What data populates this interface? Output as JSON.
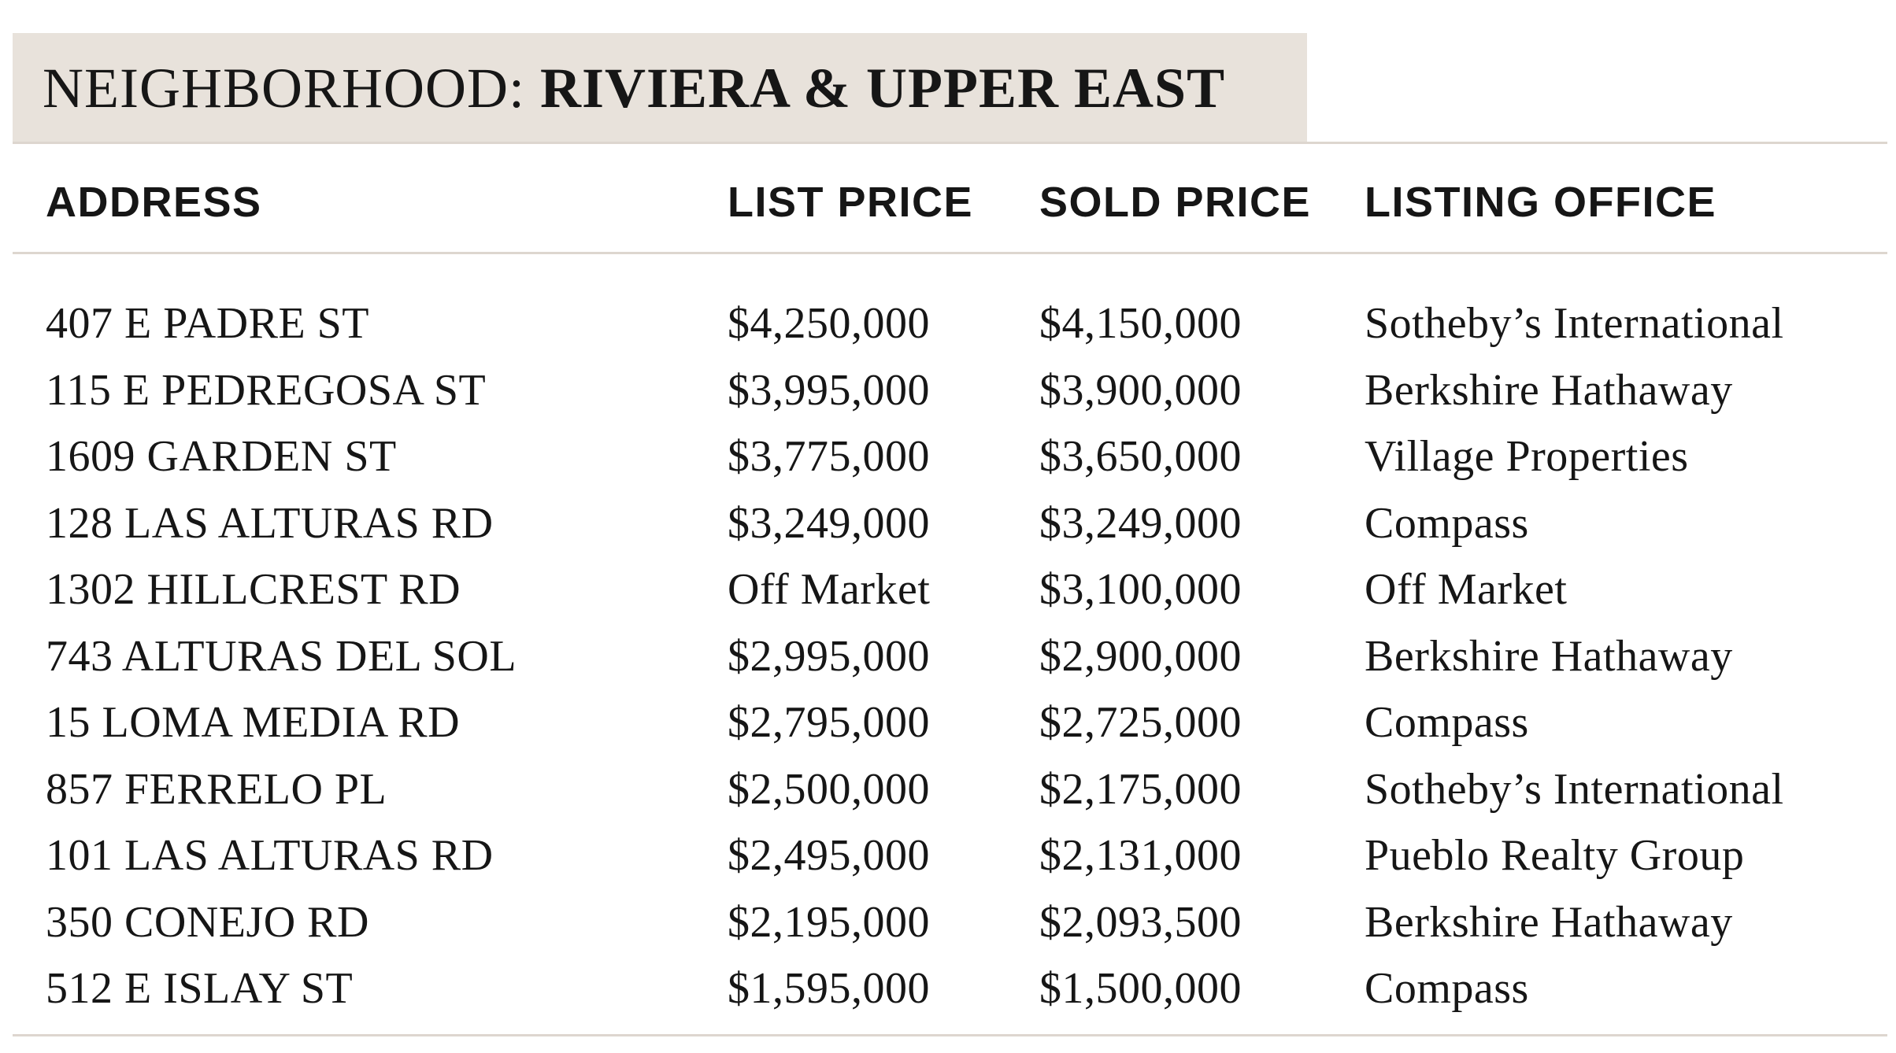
{
  "header": {
    "label": "NEIGHBORHOOD:",
    "title": "RIVIERA & UPPER EAST"
  },
  "table": {
    "headers": [
      "ADDRESS",
      "LIST PRICE",
      "SOLD PRICE",
      "LISTING OFFICE"
    ],
    "rows": [
      [
        "407 E PADRE ST",
        "$4,250,000",
        "$4,150,000",
        "Sotheby’s International"
      ],
      [
        "115 E PEDREGOSA ST",
        "$3,995,000",
        "$3,900,000",
        "Berkshire Hathaway"
      ],
      [
        "1609 GARDEN ST",
        "$3,775,000",
        "$3,650,000",
        "Village Properties"
      ],
      [
        "128 LAS ALTURAS RD",
        "$3,249,000",
        "$3,249,000",
        "Compass"
      ],
      [
        "1302 HILLCREST RD",
        "Off Market",
        "$3,100,000",
        "Off Market"
      ],
      [
        "743 ALTURAS DEL SOL",
        "$2,995,000",
        "$2,900,000",
        "Berkshire Hathaway"
      ],
      [
        "15 LOMA MEDIA RD",
        "$2,795,000",
        "$2,725,000",
        "Compass"
      ],
      [
        "857 FERRELO PL",
        "$2,500,000",
        "$2,175,000",
        "Sotheby’s International"
      ],
      [
        "101 LAS ALTURAS RD",
        "$2,495,000",
        "$2,131,000",
        "Pueblo Realty Group"
      ],
      [
        "350 CONEJO RD",
        "$2,195,000",
        "$2,093,500",
        "Berkshire Hathaway"
      ],
      [
        "512 E ISLAY ST",
        "$1,595,000",
        "$1,500,000",
        "Compass"
      ]
    ]
  }
}
